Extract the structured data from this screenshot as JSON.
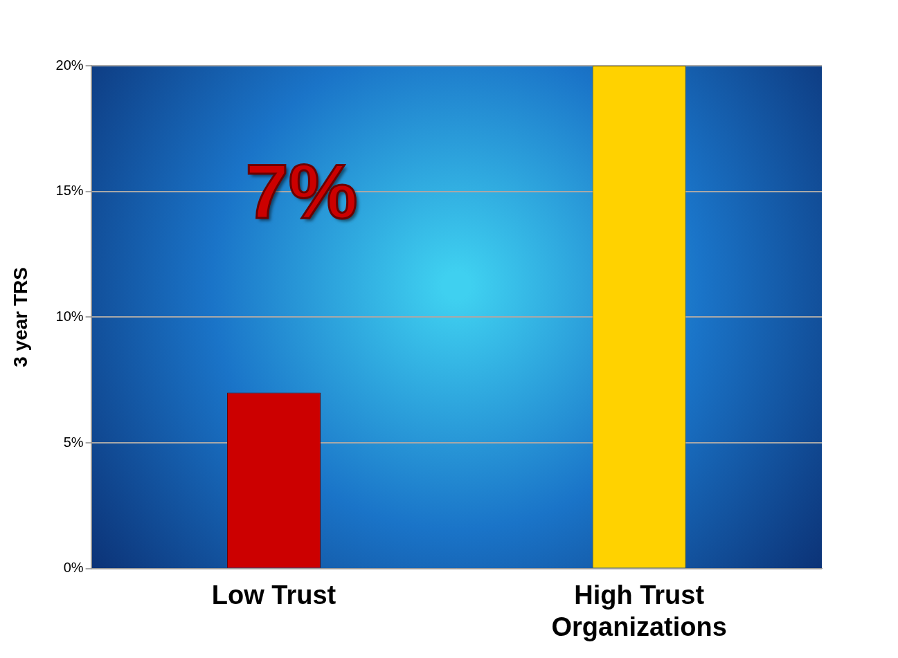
{
  "chart_data": {
    "type": "bar",
    "y_label": "3 year TRS",
    "annotation": "7%",
    "categories": [
      "Low Trust",
      "High Trust Organizations"
    ],
    "values": [
      7,
      20
    ],
    "colors": [
      "#cc0000",
      "#ffd200"
    ],
    "ylim": [
      0,
      20
    ],
    "yticks": [
      {
        "value": 0,
        "label": "0%"
      },
      {
        "value": 5,
        "label": "5%"
      },
      {
        "value": 10,
        "label": "10%"
      },
      {
        "value": 15,
        "label": "15%"
      },
      {
        "value": 20,
        "label": "20%"
      }
    ],
    "grid": true
  }
}
